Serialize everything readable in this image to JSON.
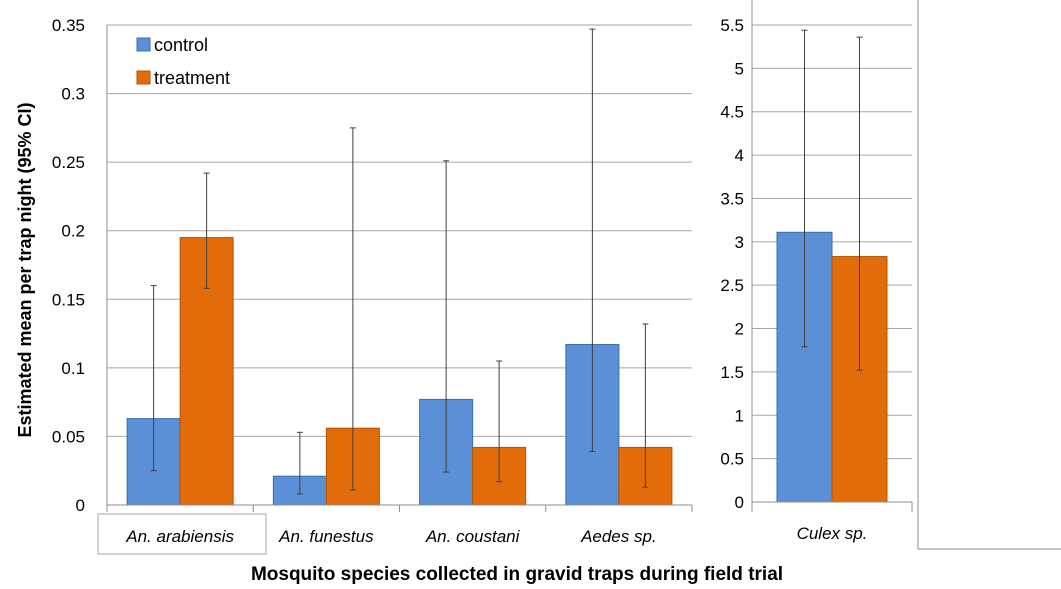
{
  "chart_data": [
    {
      "type": "bar",
      "ylabel": "Estimated mean per trap night (95% CI)",
      "xlabel": "Mosquito species collected in gravid traps during field trial",
      "ylim": [
        0,
        0.35
      ],
      "yticks": [
        "0",
        "0.05",
        "0.1",
        "0.15",
        "0.2",
        "0.25",
        "0.3",
        "0.35"
      ],
      "grid": true,
      "legend_position": "top-left",
      "categories": [
        "An. arabiensis",
        "An. funestus",
        "An. coustani",
        "Aedes sp."
      ],
      "series": [
        {
          "name": "control",
          "color": "#5b8fd6",
          "values": [
            0.063,
            0.021,
            0.077,
            0.117
          ],
          "ci_low": [
            0.025,
            0.008,
            0.024,
            0.039
          ],
          "ci_high": [
            0.16,
            0.053,
            0.251,
            0.347
          ]
        },
        {
          "name": "treatment",
          "color": "#e36c0a",
          "values": [
            0.195,
            0.056,
            0.042,
            0.042
          ],
          "ci_low": [
            0.158,
            0.011,
            0.017,
            0.013
          ],
          "ci_high": [
            0.242,
            0.275,
            0.105,
            0.132
          ]
        }
      ]
    },
    {
      "type": "bar",
      "ylim": [
        0,
        5.5
      ],
      "yticks": [
        "0",
        "0.5",
        "1",
        "1.5",
        "2",
        "2.5",
        "3",
        "3.5",
        "4",
        "4.5",
        "5",
        "5.5"
      ],
      "grid": true,
      "categories": [
        "Culex sp."
      ],
      "series": [
        {
          "name": "control",
          "color": "#5b8fd6",
          "values": [
            3.11
          ],
          "ci_low": [
            1.79
          ],
          "ci_high": [
            5.44
          ]
        },
        {
          "name": "treatment",
          "color": "#e36c0a",
          "values": [
            2.83
          ],
          "ci_low": [
            1.52
          ],
          "ci_high": [
            5.36
          ]
        }
      ]
    }
  ]
}
